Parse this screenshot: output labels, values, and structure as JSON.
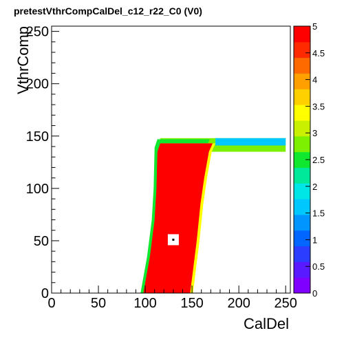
{
  "chart_data": {
    "type": "heatmap",
    "title": "pretestVthrCompCalDel_c12_r22_C0 (V0)",
    "xlabel": "CalDel",
    "ylabel": "VthrComp",
    "xlim": [
      0,
      255
    ],
    "ylim": [
      0,
      255
    ],
    "zlim": [
      0,
      5
    ],
    "x_ticks": [
      0,
      50,
      100,
      150,
      200,
      250
    ],
    "y_ticks": [
      0,
      50,
      100,
      150,
      200,
      250
    ],
    "z_ticks": [
      0,
      0.5,
      1,
      1.5,
      2,
      2.5,
      3,
      3.5,
      4,
      4.5,
      5
    ],
    "colormap": [
      "#7f00ff",
      "#5a1aff",
      "#2b3dff",
      "#0066ff",
      "#0095ff",
      "#00c8ff",
      "#00e6e6",
      "#00e89a",
      "#10e830",
      "#7cf000",
      "#c8f000",
      "#ffff00",
      "#ffd000",
      "#ffa000",
      "#ff6a00",
      "#ff2a00",
      "#ff0000"
    ],
    "efficiency_region": {
      "value": 5,
      "polygon": [
        [
          79,
          0
        ],
        [
          98,
          0
        ],
        [
          105,
          35
        ],
        [
          110,
          70
        ],
        [
          112,
          100
        ],
        [
          113,
          135
        ],
        [
          116,
          143
        ],
        [
          172,
          143
        ],
        [
          168,
          135
        ],
        [
          163,
          110
        ],
        [
          159,
          85
        ],
        [
          155,
          50
        ],
        [
          148,
          0
        ]
      ],
      "plateau_band": {
        "y_min": 135,
        "y_max": 148,
        "x_max": 250
      }
    },
    "empty_pixel": {
      "x": 130,
      "y": 51,
      "value": 0
    }
  }
}
